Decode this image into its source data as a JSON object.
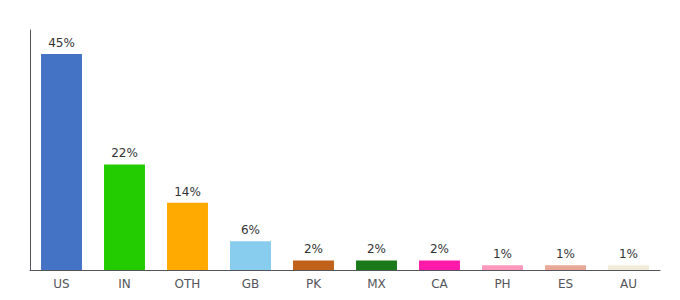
{
  "chart_data": {
    "type": "bar",
    "categories": [
      "US",
      "IN",
      "OTH",
      "GB",
      "PK",
      "MX",
      "CA",
      "PH",
      "ES",
      "AU"
    ],
    "values": [
      45,
      22,
      14,
      6,
      2,
      2,
      2,
      1,
      1,
      1
    ],
    "value_labels": [
      "45%",
      "22%",
      "14%",
      "6%",
      "2%",
      "2%",
      "2%",
      "1%",
      "1%",
      "1%"
    ],
    "colors": [
      "#4472c4",
      "#22cc00",
      "#ffaa00",
      "#88ccee",
      "#c0621a",
      "#1a7a1a",
      "#ff1aaa",
      "#ff99bb",
      "#e8a898",
      "#f0ecd8"
    ],
    "ylim": [
      0,
      50
    ],
    "grid": false,
    "data_labels": true,
    "tick_labels": "x"
  }
}
